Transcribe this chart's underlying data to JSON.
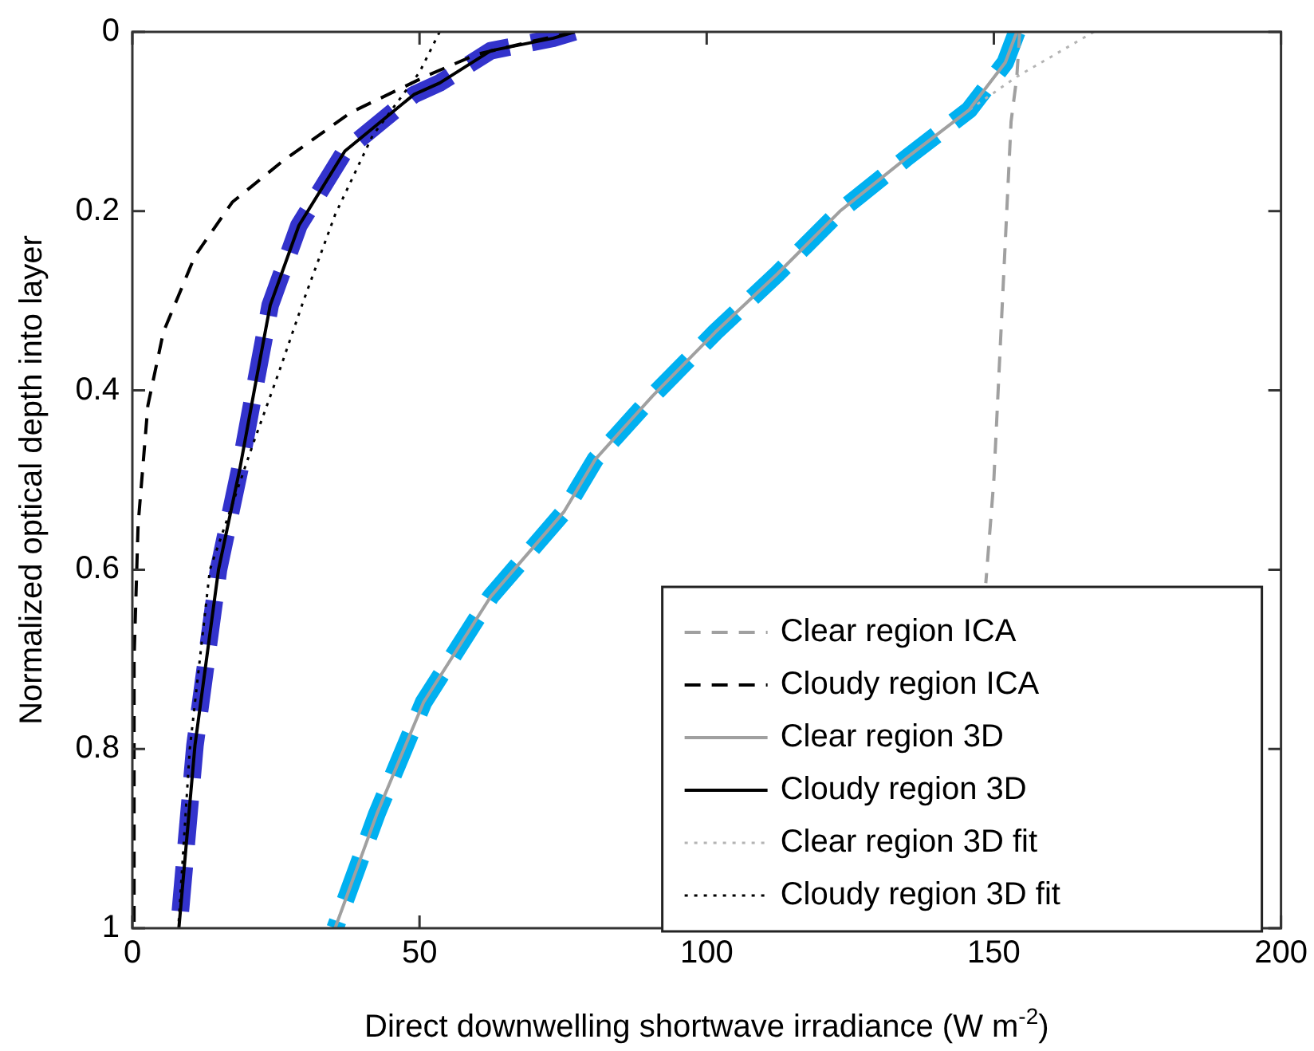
{
  "chart_data": {
    "type": "line",
    "xlabel": "Direct downwelling shortwave irradiance (W m$^{-2}$)",
    "ylabel": "Normalized optical depth into layer",
    "xlim": [
      0,
      200
    ],
    "xticks": [
      0,
      50,
      100,
      150,
      200
    ],
    "ylim": [
      1,
      0
    ],
    "yticks": [
      0,
      0.2,
      0.4,
      0.6,
      0.8,
      1
    ],
    "grid": false,
    "legend": "bottom right",
    "marker": "none",
    "series": [
      {
        "name": "Clear region ICA",
        "color": "#a0a0a0",
        "line_style": "dashed",
        "x": [
          154.5,
          154,
          153,
          151.5,
          150,
          148.6
        ],
        "values": [
          0,
          0.05,
          0.1,
          0.3,
          0.5,
          0.615
        ]
      },
      {
        "name": "Cloudy region ICA",
        "color": "#000000",
        "line_style": "dashed",
        "x": [
          77,
          70,
          60,
          51.6,
          38,
          26,
          17.4,
          10.9,
          5.4,
          2.7,
          1,
          0.3,
          0.3
        ],
        "values": [
          0,
          0.01,
          0.025,
          0.048,
          0.09,
          0.145,
          0.19,
          0.25,
          0.335,
          0.417,
          0.55,
          0.7,
          1
        ]
      },
      {
        "name": "Clear region 3D",
        "color": "#a0a0a0",
        "line_style": "solid",
        "x": [
          154,
          152,
          145.7,
          134.9,
          123.2,
          112.3,
          101.5,
          90.6,
          80.6,
          75.2,
          62.4,
          50.7,
          42.6,
          35.3
        ],
        "values": [
          0,
          0.034,
          0.087,
          0.14,
          0.2,
          0.27,
          0.335,
          0.406,
          0.477,
          0.535,
          0.63,
          0.748,
          0.872,
          1
        ]
      },
      {
        "name": "Cloudy region 3D",
        "color": "#000000",
        "line_style": "solid",
        "x": [
          77,
          73.3,
          62.4,
          53.5,
          49,
          37,
          29,
          24,
          21.4,
          18.7,
          15,
          10.9,
          8.1
        ],
        "values": [
          0,
          0.007,
          0.021,
          0.057,
          0.07,
          0.133,
          0.216,
          0.305,
          0.394,
          0.488,
          0.6,
          0.796,
          1
        ]
      },
      {
        "name": "Clear region 3D fit",
        "color": "#b4b4b4",
        "line_style": "dotted",
        "x": [
          167.4,
          154,
          145.7
        ],
        "values": [
          0,
          0.05,
          0.087
        ]
      },
      {
        "name": "Cloudy region 3D fit",
        "color": "#000000",
        "line_style": "dotted",
        "x": [
          53.5,
          50,
          41.8,
          35.3,
          29.8,
          25.5,
          21,
          13.5,
          10,
          8
        ],
        "values": [
          0,
          0.045,
          0.116,
          0.204,
          0.3,
          0.38,
          0.46,
          0.6,
          0.8,
          1
        ]
      },
      {
        "color": "#3333cc",
        "line_style": "dashed",
        "x": [
          77,
          73.3,
          62.4,
          53.5,
          49,
          37,
          29,
          24,
          21.4,
          18.7,
          15,
          10.9,
          8.1
        ],
        "values": [
          0,
          0.007,
          0.021,
          0.057,
          0.07,
          0.133,
          0.216,
          0.305,
          0.394,
          0.488,
          0.6,
          0.796,
          1
        ]
      },
      {
        "color": "#00b0f0",
        "line_style": "dashed",
        "x": [
          154,
          152,
          145.7,
          134.9,
          123.2,
          112.3,
          101.5,
          90.6,
          80.6,
          75.2,
          62.4,
          50.7,
          42.6,
          35.3
        ],
        "values": [
          0,
          0.034,
          0.087,
          0.14,
          0.2,
          0.27,
          0.335,
          0.406,
          0.477,
          0.535,
          0.63,
          0.748,
          0.872,
          1
        ]
      }
    ]
  }
}
